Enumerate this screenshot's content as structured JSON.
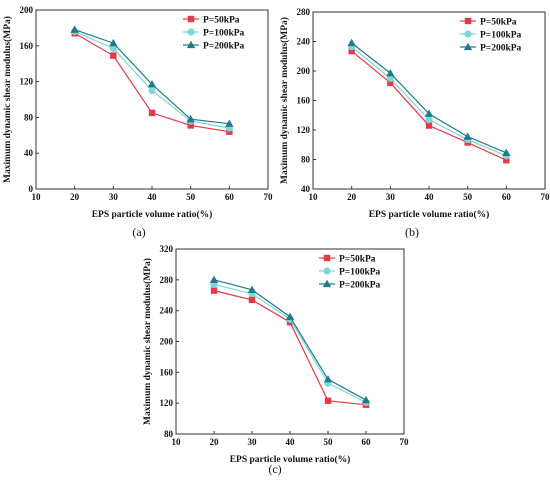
{
  "colors": {
    "P=50kPa": "#e63946",
    "P=100kPa": "#7fd6d6",
    "P=200kPa": "#1f7a8c",
    "axis": "#333333"
  },
  "chart_data": [
    {
      "type": "line",
      "caption": "(a)",
      "xlabel": "EPS particle volume ratio(%)",
      "ylabel": "Maximum dynamic shear modulus(MPa)",
      "xlim": [
        10,
        70
      ],
      "ylim": [
        0,
        200
      ],
      "xticks": [
        10,
        20,
        30,
        40,
        50,
        60,
        70
      ],
      "yticks": [
        0,
        40,
        80,
        120,
        160,
        200
      ],
      "legend_position": "top-right",
      "grid": false,
      "x": [
        20,
        30,
        40,
        50,
        60
      ],
      "series": [
        {
          "name": "P=50kPa",
          "marker": "square",
          "values": [
            174,
            149,
            85,
            71,
            64
          ]
        },
        {
          "name": "P=100kPa",
          "marker": "circle",
          "values": [
            176,
            157,
            110,
            76,
            68
          ]
        },
        {
          "name": "P=200kPa",
          "marker": "triangle",
          "values": [
            178,
            163,
            117,
            78,
            73
          ]
        }
      ]
    },
    {
      "type": "line",
      "caption": "(b)",
      "xlabel": "EPS particle volume ratio(%)",
      "ylabel": "Maximum dynamic shear modulus(MPa)",
      "xlim": [
        10,
        70
      ],
      "ylim": [
        40,
        280
      ],
      "xticks": [
        10,
        20,
        30,
        40,
        50,
        60,
        70
      ],
      "yticks": [
        40,
        80,
        120,
        160,
        200,
        240,
        280
      ],
      "legend_position": "top-right",
      "grid": false,
      "x": [
        20,
        30,
        40,
        50,
        60
      ],
      "series": [
        {
          "name": "P=50kPa",
          "marker": "square",
          "values": [
            227,
            184,
            126,
            103,
            79
          ]
        },
        {
          "name": "P=100kPa",
          "marker": "circle",
          "values": [
            233,
            190,
            134,
            107,
            85
          ]
        },
        {
          "name": "P=200kPa",
          "marker": "triangle",
          "values": [
            238,
            197,
            142,
            111,
            89
          ]
        }
      ]
    },
    {
      "type": "line",
      "caption": "(c)",
      "xlabel": "EPS particle volume ratio(%)",
      "ylabel": "Maximum dynamic shear modulus(MPa)",
      "xlim": [
        10,
        70
      ],
      "ylim": [
        80,
        320
      ],
      "xticks": [
        10,
        20,
        30,
        40,
        50,
        60,
        70
      ],
      "yticks": [
        80,
        120,
        160,
        200,
        240,
        280,
        320
      ],
      "legend_position": "top-right",
      "grid": false,
      "x": [
        20,
        30,
        40,
        50,
        60
      ],
      "series": [
        {
          "name": "P=50kPa",
          "marker": "square",
          "values": [
            266,
            254,
            225,
            123,
            118
          ]
        },
        {
          "name": "P=100kPa",
          "marker": "circle",
          "values": [
            274,
            262,
            229,
            146,
            121
          ]
        },
        {
          "name": "P=200kPa",
          "marker": "triangle",
          "values": [
            280,
            267,
            232,
            151,
            124
          ]
        }
      ]
    }
  ]
}
